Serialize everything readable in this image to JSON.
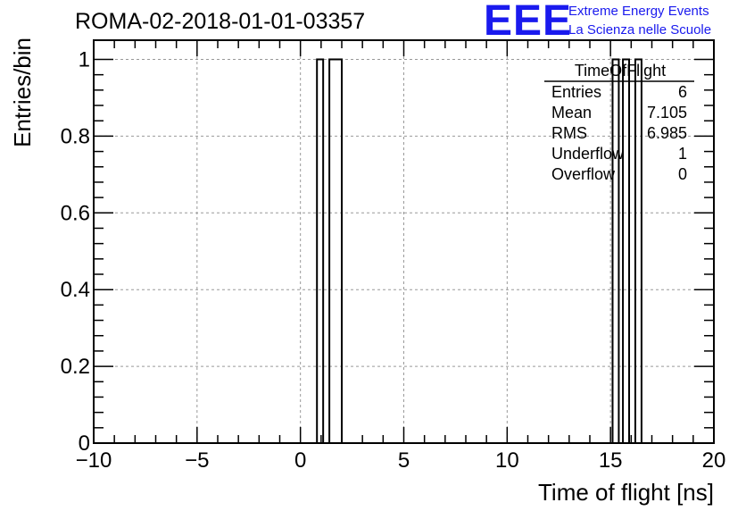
{
  "title": "ROMA-02-2018-01-01-03357",
  "logo": {
    "text": "EEE",
    "line1": "Extreme Energy Events",
    "line2": "La Scienza nelle Scuole",
    "color": "#1a1aee"
  },
  "stats": {
    "name": "TimeOfFlight",
    "rows": [
      {
        "key": "Entries",
        "value": "6"
      },
      {
        "key": "Mean",
        "value": "7.105"
      },
      {
        "key": "RMS",
        "value": "6.985"
      },
      {
        "key": "Underflow",
        "value": "1"
      },
      {
        "key": "Overflow",
        "value": "0"
      }
    ]
  },
  "chart_data": {
    "type": "bar",
    "title": "ROMA-02-2018-01-01-03357",
    "xlabel": "Time of flight [ns]",
    "ylabel": "Entries/bin",
    "xlim": [
      -10,
      20
    ],
    "ylim": [
      0,
      1.05
    ],
    "xticks": [
      -10,
      -5,
      0,
      5,
      10,
      15,
      20
    ],
    "yticks": [
      0,
      0.2,
      0.4,
      0.6,
      0.8,
      1
    ],
    "xtick_labels": [
      "−10",
      "−5",
      "0",
      "5",
      "10",
      "15",
      "20"
    ],
    "ytick_labels": [
      "0",
      "0.2",
      "0.4",
      "0.6",
      "0.8",
      "1"
    ],
    "grid": true,
    "bins": [
      {
        "x0": 0.8,
        "x1": 1.1,
        "value": 1
      },
      {
        "x0": 1.4,
        "x1": 2.0,
        "value": 1
      },
      {
        "x0": 15.1,
        "x1": 15.4,
        "value": 1
      },
      {
        "x0": 15.6,
        "x1": 15.9,
        "value": 1
      },
      {
        "x0": 16.2,
        "x1": 16.5,
        "value": 1
      }
    ]
  }
}
